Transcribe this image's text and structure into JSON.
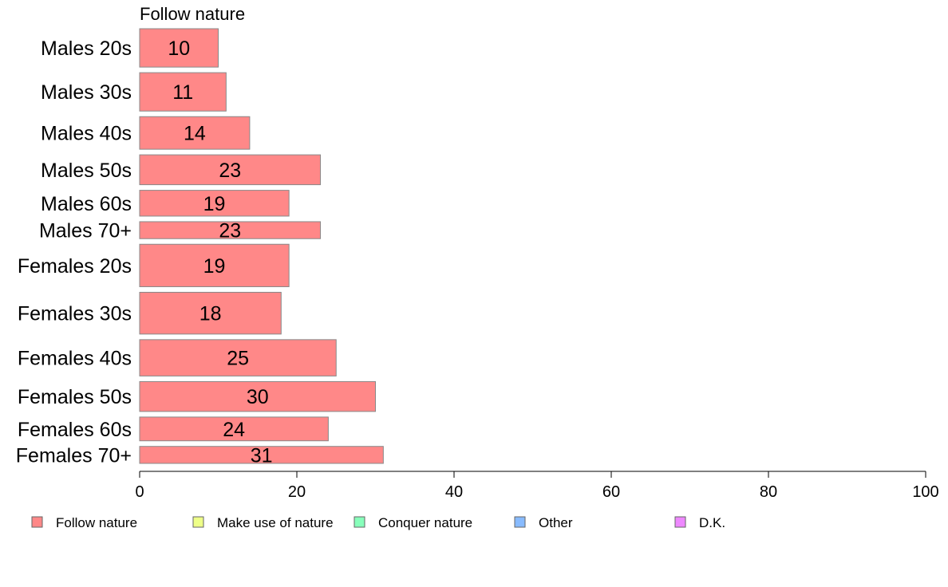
{
  "chart_data": {
    "type": "bar",
    "orientation": "horizontal",
    "title": "Follow nature",
    "categories": [
      "Males 20s",
      "Males 30s",
      "Males 40s",
      "Males 50s",
      "Males 60s",
      "Males 70+",
      "Females 20s",
      "Females 30s",
      "Females 40s",
      "Females 50s",
      "Females 60s",
      "Females 70+"
    ],
    "series": [
      {
        "name": "Follow nature",
        "color": "#ff8888",
        "values": [
          10,
          11,
          14,
          23,
          19,
          23,
          19,
          18,
          25,
          30,
          24,
          31
        ]
      }
    ],
    "data_labels": [
      "10",
      "11",
      "14",
      "23",
      "19",
      "23",
      "19",
      "18",
      "25",
      "30",
      "24",
      "31"
    ],
    "relative_bar_widths": [
      1.13,
      1.13,
      0.96,
      0.88,
      0.76,
      0.5,
      1.25,
      1.23,
      1.07,
      0.88,
      0.7,
      0.5
    ],
    "xlim": [
      0,
      100
    ],
    "xticks": [
      0,
      20,
      40,
      60,
      80,
      100
    ],
    "xtick_labels": [
      "0",
      "20",
      "40",
      "60",
      "80",
      "100"
    ],
    "bar_stroke": "#888888",
    "legend": {
      "placement": "bottom",
      "items": [
        {
          "label": "Follow nature",
          "color": "#ff8888"
        },
        {
          "label": "Make use of nature",
          "color": "#eeff88"
        },
        {
          "label": "Conquer nature",
          "color": "#88ffbb"
        },
        {
          "label": "Other",
          "color": "#88bbff"
        },
        {
          "label": "D.K.",
          "color": "#ee88ff"
        }
      ]
    }
  }
}
